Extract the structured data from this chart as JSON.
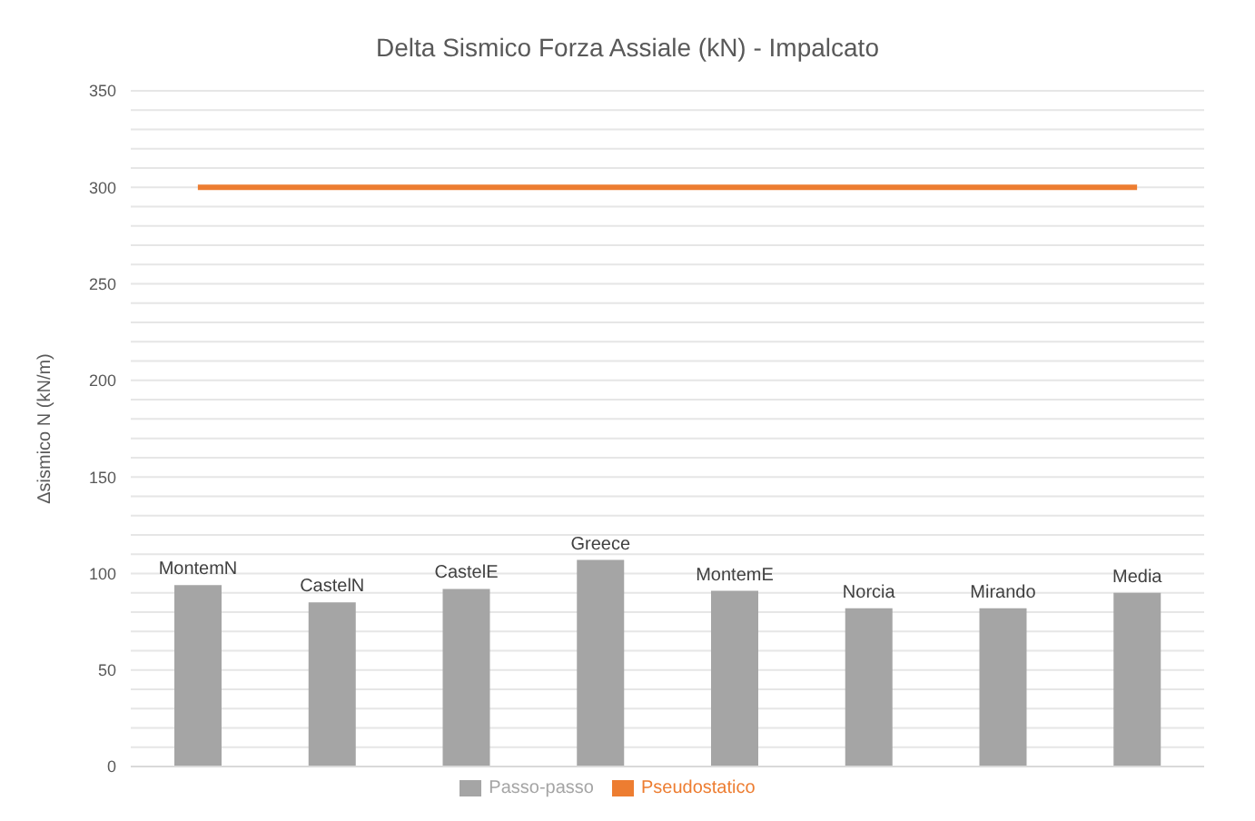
{
  "chart_data": {
    "type": "bar",
    "title": "Delta Sismico Forza Assiale (kN) - Impalcato",
    "ylabel": "Δsismico N (kN/m)",
    "categories": [
      "MontemN",
      "CastelN",
      "CastelE",
      "Greece",
      "MontemE",
      "Norcia",
      "Mirando",
      "Media"
    ],
    "series": [
      {
        "name": "Passo-passo",
        "color": "#a5a5a5",
        "values": [
          94,
          85,
          92,
          107,
          91,
          82,
          82,
          90
        ]
      },
      {
        "name": "Pseudostatico",
        "type": "line",
        "color": "#ed7d31",
        "values": [
          300,
          300,
          300,
          300,
          300,
          300,
          300,
          300
        ]
      }
    ],
    "ylim": [
      0,
      350
    ],
    "yticks": [
      0,
      {
        "value": 10,
        "label": null
      },
      {
        "value": 20,
        "label": null
      },
      {
        "value": 30,
        "label": null
      },
      {
        "value": 40,
        "label": null
      },
      50,
      {
        "value": 60,
        "label": null
      },
      {
        "value": 70,
        "label": null
      },
      {
        "value": 80,
        "label": null
      },
      {
        "value": 90,
        "label": null
      },
      100,
      {
        "value": 110,
        "label": null
      },
      {
        "value": 120,
        "label": null
      },
      {
        "value": 130,
        "label": null
      },
      {
        "value": 140,
        "label": null
      },
      150,
      {
        "value": 160,
        "label": null
      },
      {
        "value": 170,
        "label": null
      },
      {
        "value": 180,
        "label": null
      },
      {
        "value": 190,
        "label": null
      },
      200,
      {
        "value": 210,
        "label": null
      },
      {
        "value": 220,
        "label": null
      },
      {
        "value": 230,
        "label": null
      },
      {
        "value": 240,
        "label": null
      },
      250,
      {
        "value": 260,
        "label": null
      },
      {
        "value": 270,
        "label": null
      },
      {
        "value": 280,
        "label": null
      },
      {
        "value": 290,
        "label": null
      },
      300,
      {
        "value": 310,
        "label": null
      },
      {
        "value": 320,
        "label": null
      },
      {
        "value": 330,
        "label": null
      },
      {
        "value": 340,
        "label": null
      },
      350
    ],
    "grid": "y",
    "legend": "bottom",
    "marker": "none"
  }
}
